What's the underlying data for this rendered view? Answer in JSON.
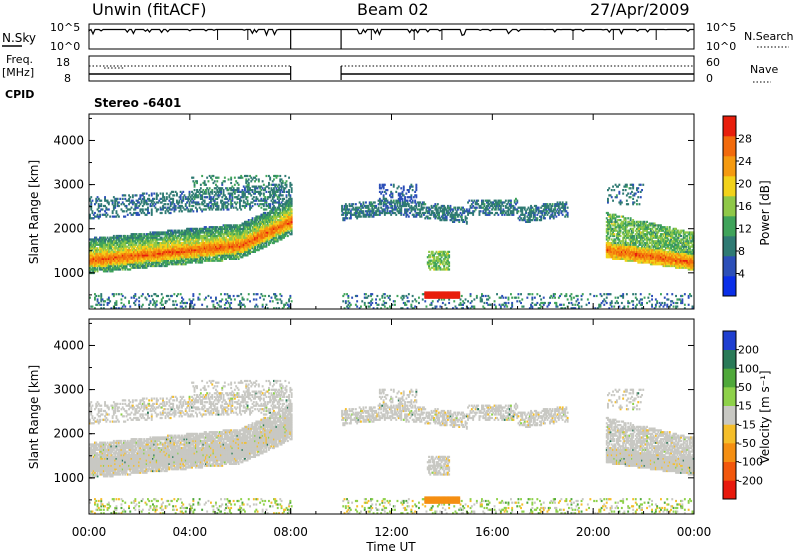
{
  "header": {
    "station": "Unwin (fitACF)",
    "beam": "Beam 02",
    "date": "27/Apr/2009"
  },
  "strips": {
    "nsky_label": "N.Sky",
    "freq_label_line1": "Freq.",
    "freq_label_line2": "[MHz]",
    "cpid_label": "CPID",
    "nsearch_label": "N.Search",
    "nave_label": "Nave",
    "nsky_ticks": [
      "10^5",
      "10^0"
    ],
    "nsearch_ticks": [
      "10^5",
      "10^0"
    ],
    "freq_ticks": [
      "18",
      "8"
    ],
    "nave_ticks": [
      "60",
      "0"
    ],
    "cpid_text": "Stereo -6401"
  },
  "x_axis": {
    "label": "Time UT",
    "ticks": [
      "00:00",
      "04:00",
      "08:00",
      "12:00",
      "16:00",
      "20:00",
      "00:00"
    ]
  },
  "colors": {
    "power_scale": [
      "#0a2fe8",
      "#2c4fb8",
      "#2f7a73",
      "#3fa35a",
      "#8fc848",
      "#f2d21a",
      "#f59a10",
      "#f26a0c",
      "#e81e0c"
    ],
    "velocity_scale": [
      "#e8190c",
      "#f2570c",
      "#f58f12",
      "#f5be2a",
      "#c8c8c3",
      "#8ed14a",
      "#4fa83a",
      "#2a7a58",
      "#1f3fd0"
    ],
    "velocity_gray": "#c8c8c3"
  },
  "chart_data": [
    {
      "type": "heatmap",
      "title": "Power",
      "ylabel": "Slant Range [km]",
      "xlabel": "Time UT",
      "ylim": [
        180,
        4600
      ],
      "xlim": [
        0,
        24
      ],
      "yticks": [
        "1000",
        "2000",
        "3000",
        "4000"
      ],
      "colorbar": {
        "label": "Power [dB]",
        "ticks": [
          "4",
          "8",
          "12",
          "16",
          "20",
          "24",
          "28"
        ],
        "range": [
          0,
          32
        ]
      },
      "data_gap_hours": [
        8.0,
        10.0
      ],
      "features": [
        {
          "name": "main band",
          "t_start": 0,
          "t_end": 8,
          "range_km": [
            1250,
            2000
          ],
          "power_db": 26
        },
        {
          "name": "upper band",
          "t_start": 0,
          "t_end": 8,
          "range_km": [
            1800,
            3100
          ],
          "power_db": 9
        },
        {
          "name": "afternoon band",
          "t_start": 10,
          "t_end": 18.5,
          "range_km": [
            2100,
            2600
          ],
          "power_db": 8
        },
        {
          "name": "patch",
          "t_start": 13.5,
          "t_end": 14.2,
          "range_km": [
            1150,
            1450
          ],
          "power_db": 14
        },
        {
          "name": "ground scatter",
          "t_start": 13.4,
          "t_end": 14.6,
          "range_km": [
            420,
            520
          ],
          "power_db": 30
        },
        {
          "name": "evening band",
          "t_start": 20.5,
          "t_end": 24,
          "range_km": [
            1200,
            2400
          ],
          "power_db": 24
        }
      ]
    },
    {
      "type": "heatmap",
      "title": "Velocity",
      "ylabel": "Slant Range [km]",
      "xlabel": "Time UT",
      "ylim": [
        180,
        4600
      ],
      "xlim": [
        0,
        24
      ],
      "yticks": [
        "1000",
        "2000",
        "3000",
        "4000"
      ],
      "colorbar": {
        "label": "Velocity [m s⁻¹]",
        "ticks": [
          "200",
          "100",
          "50",
          "15",
          "-15",
          "-50",
          "-100",
          "-200"
        ]
      },
      "features": [
        {
          "name": "main band",
          "t_start": 0,
          "t_end": 8,
          "range_km": [
            1200,
            2000
          ],
          "velocity": 0
        },
        {
          "name": "ground scatter",
          "t_start": 13.4,
          "t_end": 14.6,
          "range_km": [
            420,
            520
          ],
          "velocity": -40
        }
      ]
    }
  ]
}
